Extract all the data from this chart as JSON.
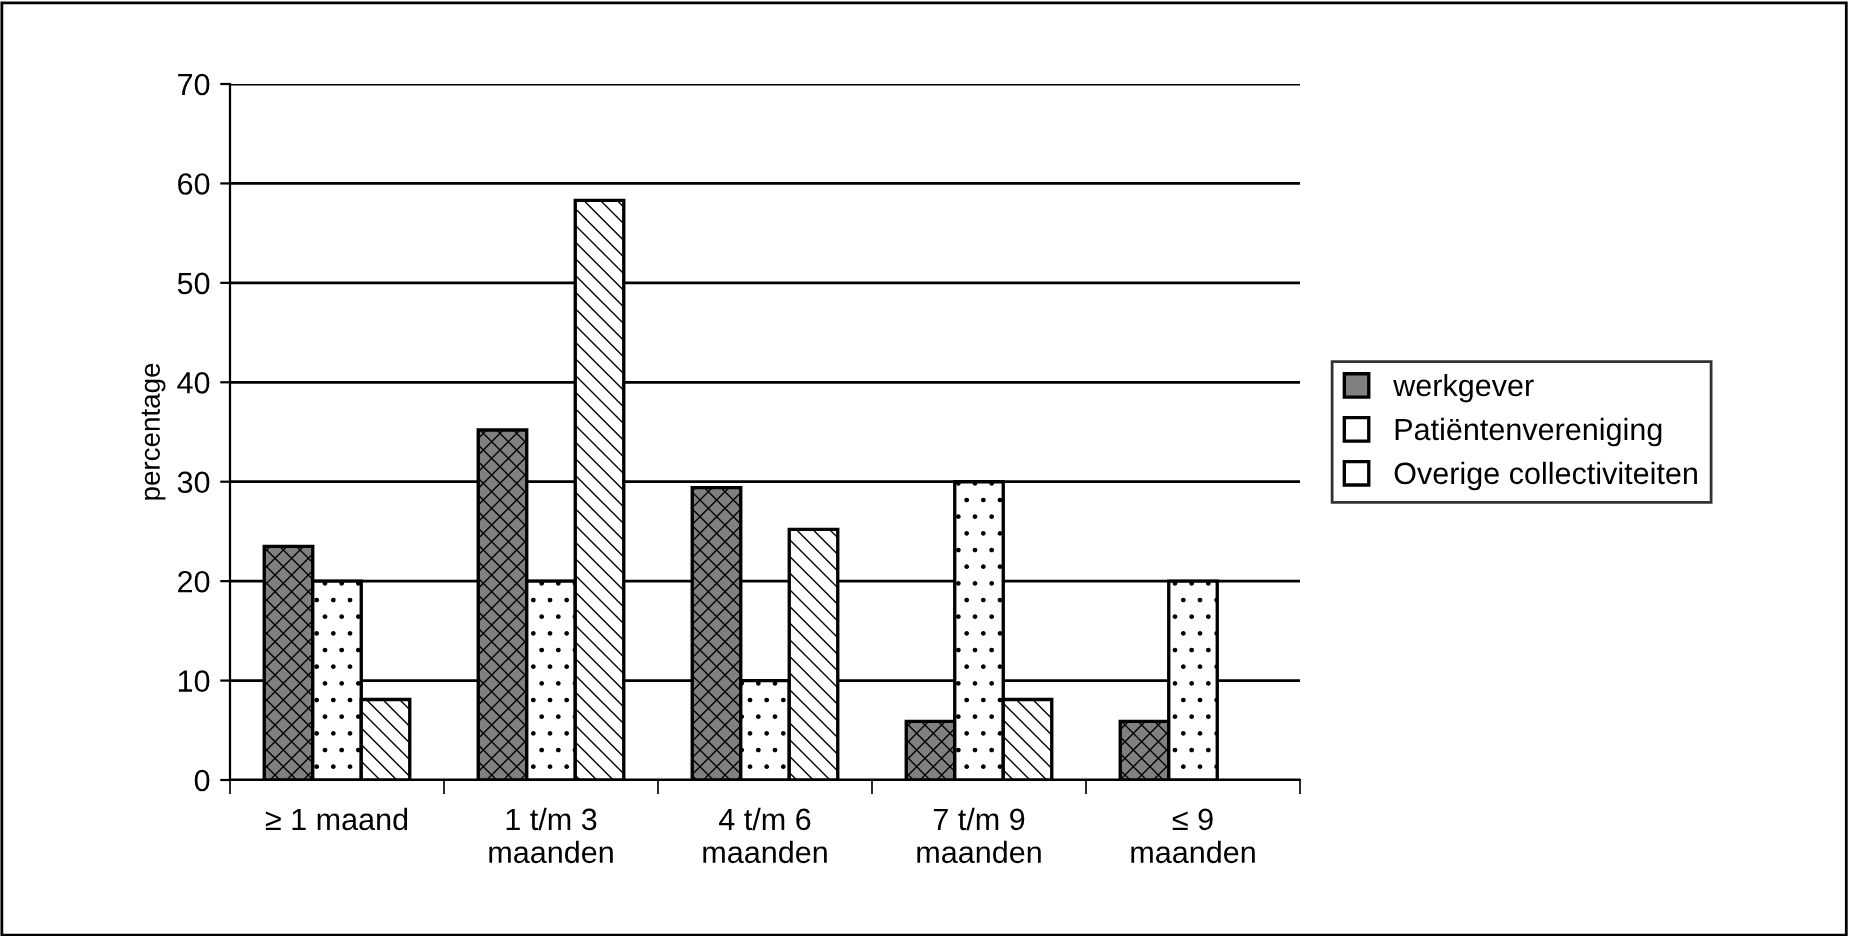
{
  "chart_data": {
    "type": "bar",
    "ylabel": "percentage",
    "categories": [
      "≥ 1 maand",
      "1 t/m 3\nmaanden",
      "4 t/m 6\nmaanden",
      "7 t/m 9\nmaanden",
      "≤ 9\nmaanden"
    ],
    "series": [
      {
        "name": "werkgever",
        "color": "#808080",
        "values": [
          23.5,
          35.2,
          29.4,
          5.9,
          5.9
        ]
      },
      {
        "name": "Patiëntenvereniging",
        "color": "#ffffff",
        "values": [
          20,
          20,
          10,
          30,
          20
        ]
      },
      {
        "name": "Overige collectiviteiten",
        "color": "#ffffff",
        "values": [
          8.1,
          58.3,
          25.2,
          8.1,
          null
        ]
      }
    ],
    "ylim": [
      0,
      70
    ],
    "yticks": [
      0,
      10,
      20,
      30,
      40,
      50,
      60,
      70
    ],
    "grid": "y",
    "legend": "right"
  }
}
